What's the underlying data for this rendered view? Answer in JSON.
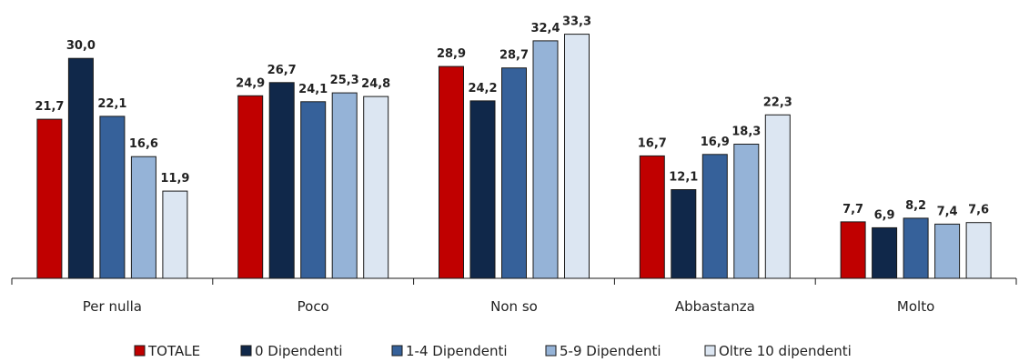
{
  "chart_data": {
    "type": "bar",
    "title": "",
    "xlabel": "",
    "ylabel": "",
    "ylim": [
      0,
      35
    ],
    "grid": false,
    "legend": "bottom",
    "categories": [
      "Per nulla",
      "Poco",
      "Non so",
      "Abbastanza",
      "Molto"
    ],
    "series": [
      {
        "name": "TOTALE",
        "color": "#c00000",
        "values": [
          21.7,
          24.9,
          28.9,
          16.7,
          7.7
        ],
        "labels": [
          "21,7",
          "24,9",
          "28,9",
          "16,7",
          "7,7"
        ]
      },
      {
        "name": "0 Dipendenti",
        "color": "#10284a",
        "values": [
          30.0,
          26.7,
          24.2,
          12.1,
          6.9
        ],
        "labels": [
          "30,0",
          "26,7",
          "24,2",
          "12,1",
          "6,9"
        ]
      },
      {
        "name": "1-4 Dipendenti",
        "color": "#36619a",
        "values": [
          22.1,
          24.1,
          28.7,
          16.9,
          8.2
        ],
        "labels": [
          "22,1",
          "24,1",
          "28,7",
          "16,9",
          "8,2"
        ]
      },
      {
        "name": "5-9 Dipendenti",
        "color": "#95b3d7",
        "values": [
          16.6,
          25.3,
          32.4,
          18.3,
          7.4
        ],
        "labels": [
          "16,6",
          "25,3",
          "32,4",
          "18,3",
          "7,4"
        ]
      },
      {
        "name": "Oltre 10 dipendenti",
        "color": "#dce6f2",
        "values": [
          11.9,
          24.8,
          33.3,
          22.3,
          7.6
        ],
        "labels": [
          "11,9",
          "24,8",
          "33,3",
          "22,3",
          "7,6"
        ]
      }
    ]
  }
}
